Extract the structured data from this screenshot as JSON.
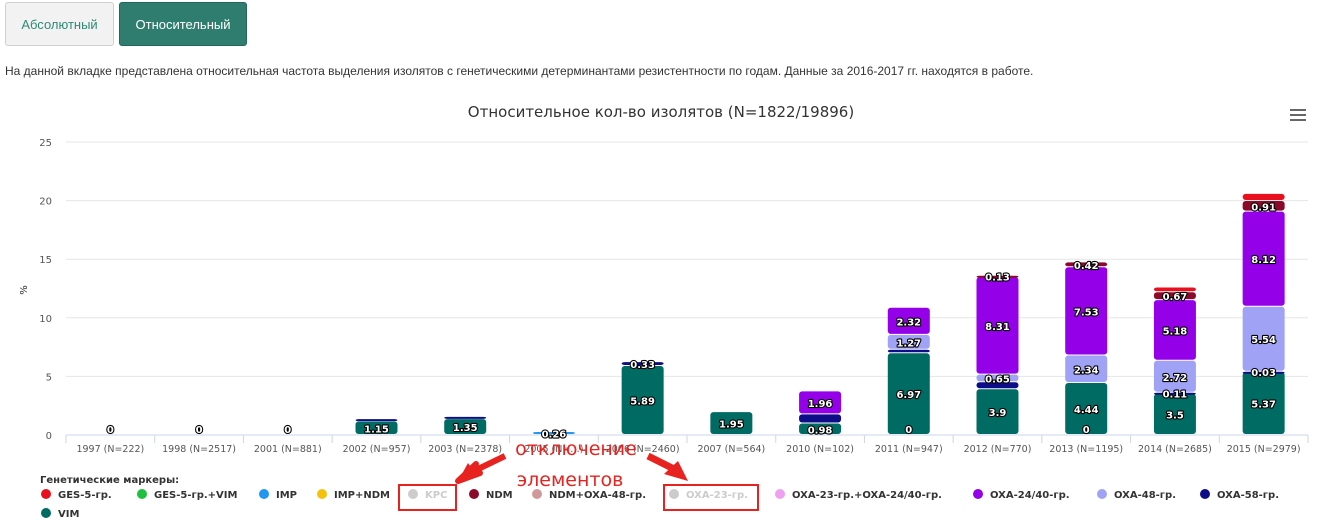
{
  "tabs": {
    "absolute": "Абсолютный",
    "relative": "Относительный",
    "active": "relative"
  },
  "description": "На данной вкладке представлена относительная частота выделения изолятов с генетическими детерминантами резистентности по годам. Данные за 2016-2017 гг. находятся в работе.",
  "annotation": {
    "line1": "отключение",
    "line2": "элементов",
    "color": "#e8231f"
  },
  "chart_data": {
    "type": "bar",
    "stacked": true,
    "title": "Относительное кол-во изолятов (N=1822/19896)",
    "ylabel": "%",
    "ylim": [
      0,
      25
    ],
    "yticks": [
      0,
      5,
      10,
      15,
      20,
      25
    ],
    "grid": true,
    "legend_title": "Генетические маркеры:",
    "legend_position": "bottom-left",
    "categories": [
      "1997 (N=222)",
      "1998 (N=2517)",
      "2001 (N=881)",
      "2002 (N=957)",
      "2003 (N=2378)",
      "2005 (N=…)",
      "2006 (N=2460)",
      "2007 (N=564)",
      "2010 (N=102)",
      "2011 (N=947)",
      "2012 (N=770)",
      "2013 (N=1195)",
      "2014 (N=2685)",
      "2015 (N=2979)"
    ],
    "series": [
      {
        "name": "GES-5-гр.",
        "color": "#e8101e",
        "visible": true,
        "values": [
          0,
          0,
          0,
          0,
          0,
          0,
          0,
          0,
          0,
          0,
          0,
          0,
          0.4,
          0.6
        ]
      },
      {
        "name": "GES-5-гр.+VIM",
        "color": "#1fbf3f",
        "visible": true,
        "values": [
          0,
          0,
          0,
          0,
          0,
          0,
          0,
          0,
          0,
          0,
          0,
          0,
          0,
          0
        ]
      },
      {
        "name": "IMP",
        "color": "#2196f3",
        "visible": true,
        "values": [
          0,
          0,
          0,
          0,
          0,
          0.26,
          0,
          0,
          0,
          0,
          0,
          0,
          0,
          0
        ]
      },
      {
        "name": "IMP+NDM",
        "color": "#f4c20d",
        "visible": true,
        "values": [
          0,
          0,
          0,
          0,
          0,
          0,
          0,
          0,
          0,
          0,
          0,
          0,
          0,
          0
        ]
      },
      {
        "name": "KPC",
        "color": "#cccccc",
        "visible": false,
        "values": [
          0,
          0,
          0,
          0,
          0,
          0,
          0,
          0,
          0,
          0,
          0,
          0,
          0,
          0
        ]
      },
      {
        "name": "NDM",
        "color": "#8b0a2a",
        "visible": true,
        "values": [
          0,
          0,
          0,
          0,
          0,
          0,
          0,
          0,
          0,
          0,
          0.13,
          0.42,
          0.67,
          0.91
        ]
      },
      {
        "name": "NDM+OXA-48-гр.",
        "color": "#d09a9a",
        "visible": true,
        "values": [
          0,
          0,
          0,
          0,
          0,
          0,
          0,
          0,
          0,
          0,
          0,
          0,
          0,
          0
        ]
      },
      {
        "name": "OXA-23-гр.",
        "color": "#cccccc",
        "visible": false,
        "values": [
          0,
          0,
          0,
          0,
          0,
          0,
          0,
          0,
          0,
          0,
          0,
          0,
          0,
          0
        ]
      },
      {
        "name": "OXA-23-гр.+OXA-24/40-гр.",
        "color": "#f0a0f0",
        "visible": true,
        "values": [
          0,
          0,
          0,
          0,
          0,
          0,
          0,
          0,
          0,
          0,
          0,
          0,
          0,
          0
        ]
      },
      {
        "name": "OXA-24/40-гр.",
        "color": "#9400e8",
        "visible": true,
        "values": [
          0,
          0,
          0,
          0,
          0,
          0,
          0,
          0,
          1.96,
          2.32,
          8.31,
          7.53,
          5.18,
          8.12
        ]
      },
      {
        "name": "OXA-48-гр.",
        "color": "#a0a3f5",
        "visible": true,
        "values": [
          0,
          0,
          0,
          0,
          0,
          0,
          0,
          0,
          0,
          1.27,
          0.65,
          2.34,
          2.72,
          5.54
        ]
      },
      {
        "name": "OXA-58-гр.",
        "color": "#0d0d8a",
        "visible": true,
        "values": [
          0,
          0,
          0,
          0.2,
          0.2,
          0,
          0.33,
          0,
          0.78,
          0.3,
          0.6,
          0,
          0.11,
          0.03
        ]
      },
      {
        "name": "VIM",
        "color": "#006b63",
        "visible": true,
        "values": [
          0,
          0,
          0,
          1.15,
          1.35,
          0,
          5.89,
          1.95,
          0.98,
          6.97,
          3.9,
          4.44,
          3.5,
          5.37
        ]
      }
    ],
    "data_labels": [
      {
        "category": 0,
        "series": "VIM",
        "text": "0"
      },
      {
        "category": 1,
        "series": "VIM",
        "text": "0"
      },
      {
        "category": 2,
        "series": "VIM",
        "text": "0"
      },
      {
        "category": 3,
        "series": "VIM",
        "text": "1.15"
      },
      {
        "category": 4,
        "series": "VIM",
        "text": "1.35"
      },
      {
        "category": 5,
        "series": "IMP",
        "text": "0.26"
      },
      {
        "category": 6,
        "series": "VIM",
        "text": "5.89"
      },
      {
        "category": 6,
        "series": "OXA-58-гр.",
        "text": "0.33"
      },
      {
        "category": 7,
        "series": "VIM",
        "text": "1.95"
      },
      {
        "category": 8,
        "series": "VIM",
        "text": "0.98"
      },
      {
        "category": 8,
        "series": "OXA-24/40-гр.",
        "text": "1.96"
      },
      {
        "category": 9,
        "series": "VIM",
        "text": "6.97"
      },
      {
        "category": 9,
        "series": "OXA-48-гр.",
        "text": "1.27"
      },
      {
        "category": 9,
        "series": "OXA-24/40-гр.",
        "text": "2.32"
      },
      {
        "category": 9,
        "series": "NDM",
        "text": "0"
      },
      {
        "category": 10,
        "series": "VIM",
        "text": "3.9"
      },
      {
        "category": 10,
        "series": "OXA-48-гр.",
        "text": "0.65"
      },
      {
        "category": 10,
        "series": "OXA-24/40-гр.",
        "text": "8.31"
      },
      {
        "category": 10,
        "series": "NDM",
        "text": "0.13"
      },
      {
        "category": 11,
        "series": "VIM",
        "text": "4.44"
      },
      {
        "category": 11,
        "series": "OXA-58-гр.",
        "text": "0"
      },
      {
        "category": 11,
        "series": "OXA-48-гр.",
        "text": "2.34"
      },
      {
        "category": 11,
        "series": "OXA-24/40-гр.",
        "text": "7.53"
      },
      {
        "category": 11,
        "series": "NDM",
        "text": "0.42"
      },
      {
        "category": 12,
        "series": "VIM",
        "text": "3.5"
      },
      {
        "category": 12,
        "series": "OXA-58-гр.",
        "text": "0.11"
      },
      {
        "category": 12,
        "series": "OXA-48-гр.",
        "text": "2.72"
      },
      {
        "category": 12,
        "series": "OXA-24/40-гр.",
        "text": "5.18"
      },
      {
        "category": 12,
        "series": "NDM",
        "text": "0.67"
      },
      {
        "category": 13,
        "series": "VIM",
        "text": "5.37"
      },
      {
        "category": 13,
        "series": "OXA-58-гр.",
        "text": "0.03"
      },
      {
        "category": 13,
        "series": "OXA-48-гр.",
        "text": "5.54"
      },
      {
        "category": 13,
        "series": "OXA-24/40-гр.",
        "text": "8.12"
      },
      {
        "category": 13,
        "series": "NDM",
        "text": "0.91"
      }
    ]
  }
}
